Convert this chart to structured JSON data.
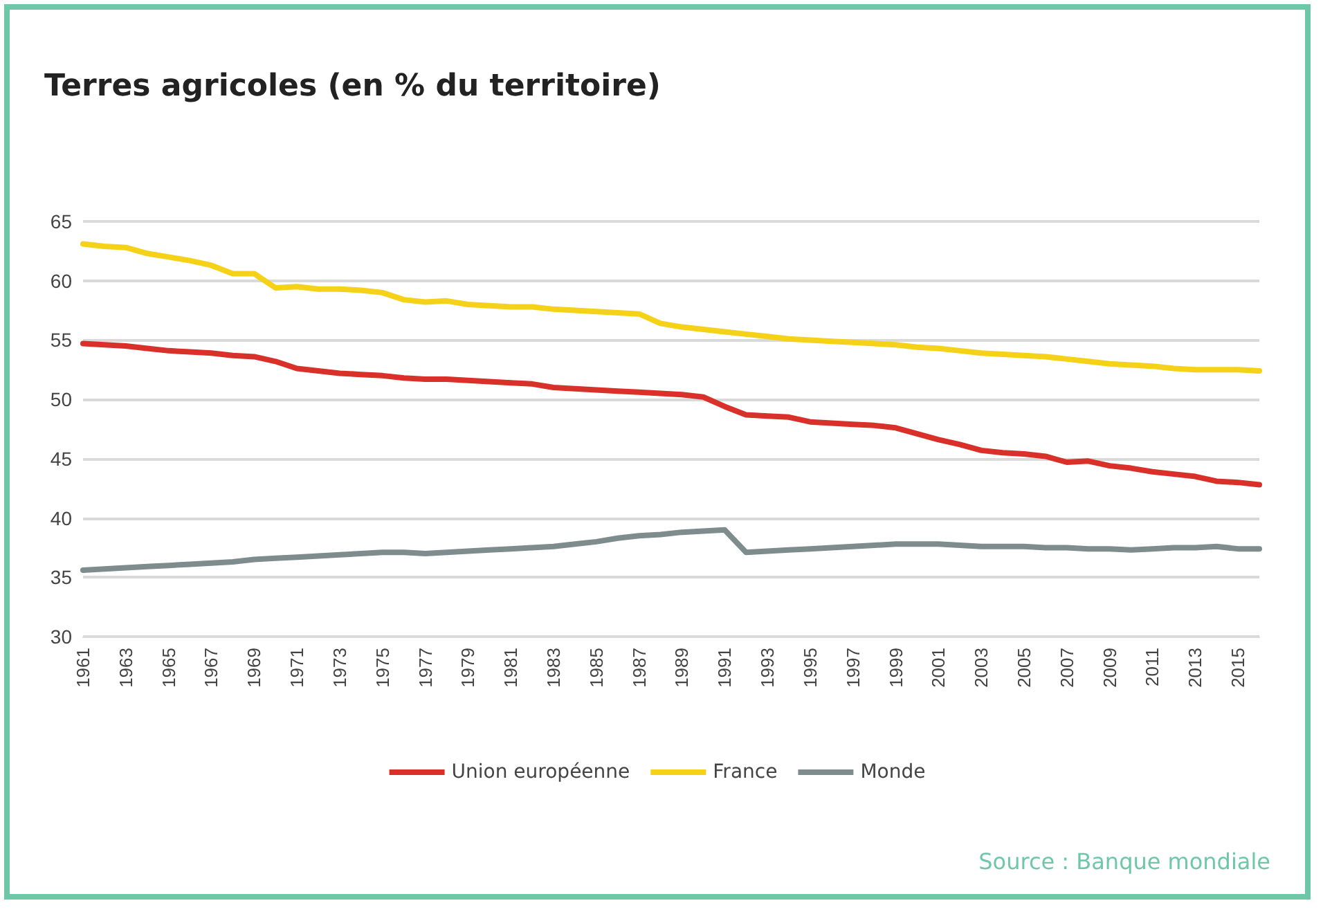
{
  "chart_data": {
    "type": "line",
    "title": "Terres agricoles (en % du territoire)",
    "categories": [
      "1961",
      null,
      "1963",
      null,
      "1965",
      null,
      "1967",
      null,
      "1969",
      null,
      "1971",
      null,
      "1973",
      null,
      "1975",
      null,
      "1977",
      null,
      "1979",
      null,
      "1981",
      null,
      "1983",
      null,
      "1985",
      null,
      "1987",
      null,
      "1989",
      null,
      "1991",
      null,
      "1993",
      null,
      "1995",
      null,
      "1997",
      null,
      "1999",
      null,
      "2001",
      null,
      "2003",
      null,
      "2005",
      null,
      "2007",
      null,
      "2009",
      null,
      "2011",
      null,
      "2013",
      null,
      "2015",
      null
    ],
    "series": [
      {
        "name": "Union européenne",
        "color": "#d9302a",
        "values": [
          54.7,
          54.6,
          54.5,
          54.3,
          54.1,
          54.0,
          53.9,
          53.7,
          53.6,
          53.2,
          52.6,
          52.4,
          52.2,
          52.1,
          52.0,
          51.8,
          51.7,
          51.7,
          51.6,
          51.5,
          51.4,
          51.3,
          51.0,
          50.9,
          50.8,
          50.7,
          50.6,
          50.5,
          50.4,
          50.2,
          49.4,
          48.7,
          48.6,
          48.5,
          48.1,
          48.0,
          47.9,
          47.8,
          47.6,
          47.1,
          46.6,
          46.2,
          45.7,
          45.5,
          45.4,
          45.2,
          44.7,
          44.8,
          44.4,
          44.2,
          43.9,
          43.7,
          43.5,
          43.1,
          43.0,
          42.8
        ]
      },
      {
        "name": "France",
        "color": "#f5d118",
        "values": [
          63.1,
          62.9,
          62.8,
          62.3,
          62.0,
          61.7,
          61.3,
          60.6,
          60.6,
          59.4,
          59.5,
          59.3,
          59.3,
          59.2,
          59.0,
          58.4,
          58.2,
          58.3,
          58.0,
          57.9,
          57.8,
          57.8,
          57.6,
          57.5,
          57.4,
          57.3,
          57.2,
          56.4,
          56.1,
          55.9,
          55.7,
          55.5,
          55.3,
          55.1,
          55.0,
          54.9,
          54.8,
          54.7,
          54.6,
          54.4,
          54.3,
          54.1,
          53.9,
          53.8,
          53.7,
          53.6,
          53.4,
          53.2,
          53.0,
          52.9,
          52.8,
          52.6,
          52.5,
          52.5,
          52.5,
          52.4
        ]
      },
      {
        "name": "Monde",
        "color": "#7f8c8d",
        "values": [
          35.6,
          35.7,
          35.8,
          35.9,
          36.0,
          36.1,
          36.2,
          36.3,
          36.5,
          36.6,
          36.7,
          36.8,
          36.9,
          37.0,
          37.1,
          37.1,
          37.0,
          37.1,
          37.2,
          37.3,
          37.4,
          37.5,
          37.6,
          37.8,
          38.0,
          38.3,
          38.5,
          38.6,
          38.8,
          38.9,
          39.0,
          37.1,
          37.2,
          37.3,
          37.4,
          37.5,
          37.6,
          37.7,
          37.8,
          37.8,
          37.8,
          37.7,
          37.6,
          37.6,
          37.6,
          37.5,
          37.5,
          37.4,
          37.4,
          37.3,
          37.4,
          37.5,
          37.5,
          37.6,
          37.4,
          37.4
        ]
      }
    ],
    "ylim": [
      30,
      65
    ],
    "yticks": [
      30,
      35,
      40,
      45,
      50,
      55,
      60,
      65
    ],
    "grid": "y",
    "legend": "bottom",
    "marker": "none",
    "line_style": "solid",
    "annotations": [
      "Source : Banque mondiale"
    ]
  }
}
